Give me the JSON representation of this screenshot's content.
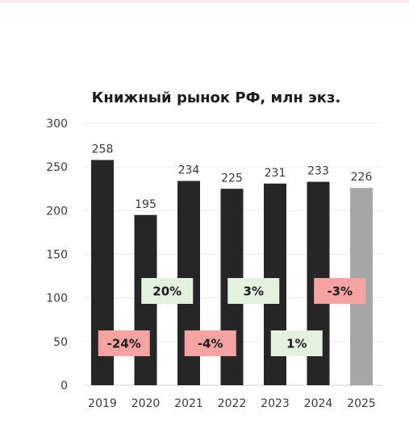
{
  "chart_data": {
    "type": "bar",
    "title": "Книжный рынок РФ, млн экз.",
    "categories": [
      "2019",
      "2020",
      "2021",
      "2022",
      "2023",
      "2024",
      "2025"
    ],
    "values": [
      258,
      195,
      234,
      225,
      231,
      233,
      226
    ],
    "value_labels": [
      "258",
      "195",
      "234",
      "225",
      "231",
      "233",
      "226"
    ],
    "changes": [
      {
        "category": "2020",
        "label": "-24%",
        "value": -24,
        "level": 48
      },
      {
        "category": "2021",
        "label": "20%",
        "value": 20,
        "level": 108
      },
      {
        "category": "2022",
        "label": "-4%",
        "value": -4,
        "level": 48
      },
      {
        "category": "2023",
        "label": "3%",
        "value": 3,
        "level": 108
      },
      {
        "category": "2024",
        "label": "1%",
        "value": 1,
        "level": 48
      },
      {
        "category": "2025",
        "label": "-3%",
        "value": -3,
        "level": 108
      }
    ],
    "ylim": [
      0,
      300
    ],
    "yticks": [
      0,
      50,
      100,
      150,
      200,
      250,
      300
    ],
    "grid": true,
    "colors": {
      "bar": "#262626",
      "bar_forecast": "#a6a6a6",
      "positive_badge": "#e3f1df",
      "negative_badge": "#f5a3a3",
      "grid": "#eeeeee"
    }
  }
}
